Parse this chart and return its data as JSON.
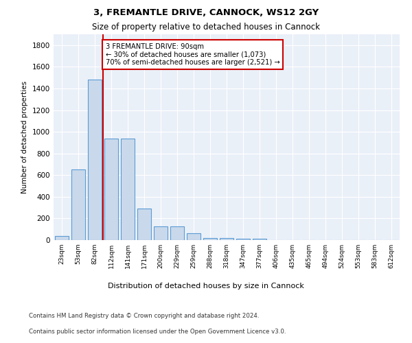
{
  "title1": "3, FREMANTLE DRIVE, CANNOCK, WS12 2GY",
  "title2": "Size of property relative to detached houses in Cannock",
  "xlabel": "Distribution of detached houses by size in Cannock",
  "ylabel": "Number of detached properties",
  "categories": [
    "23sqm",
    "53sqm",
    "82sqm",
    "112sqm",
    "141sqm",
    "171sqm",
    "200sqm",
    "229sqm",
    "259sqm",
    "288sqm",
    "318sqm",
    "347sqm",
    "377sqm",
    "406sqm",
    "435sqm",
    "465sqm",
    "494sqm",
    "524sqm",
    "553sqm",
    "583sqm",
    "612sqm"
  ],
  "values": [
    38,
    650,
    1480,
    935,
    935,
    290,
    125,
    125,
    62,
    22,
    22,
    15,
    15,
    0,
    0,
    0,
    0,
    0,
    0,
    0,
    0
  ],
  "bar_color": "#c9d9eb",
  "bar_edge_color": "#5b9bd5",
  "vline_color": "#cc0000",
  "annotation_line1": "3 FREMANTLE DRIVE: 90sqm",
  "annotation_line2": "← 30% of detached houses are smaller (1,073)",
  "annotation_line3": "70% of semi-detached houses are larger (2,521) →",
  "annotation_box_color": "#ffffff",
  "annotation_box_edge": "#cc0000",
  "ylim": [
    0,
    1900
  ],
  "yticks": [
    0,
    200,
    400,
    600,
    800,
    1000,
    1200,
    1400,
    1600,
    1800
  ],
  "plot_bg_color": "#eaf0f8",
  "grid_color": "#ffffff",
  "footer1": "Contains HM Land Registry data © Crown copyright and database right 2024.",
  "footer2": "Contains public sector information licensed under the Open Government Licence v3.0."
}
